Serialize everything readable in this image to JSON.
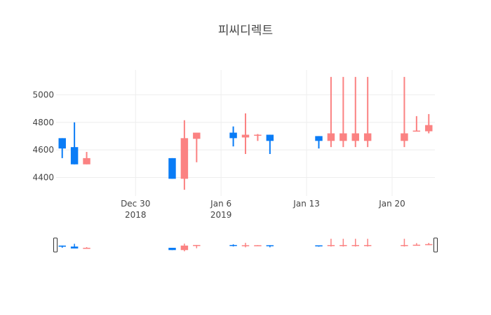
{
  "chart_data": {
    "type": "candlestick",
    "title": "피씨디렉트",
    "colors": {
      "increasing": "#fb8282",
      "decreasing": "#0a7cf6"
    },
    "y_ticks": [
      "4400",
      "4600",
      "4800",
      "5000"
    ],
    "y_tick_values": [
      4400,
      4600,
      4800,
      5000
    ],
    "ylim": [
      4265,
      5180
    ],
    "x_ticks": [
      {
        "value": "2018-12-30",
        "line1": "Dec 30",
        "line2": "2018"
      },
      {
        "value": "2019-01-06",
        "line1": "Jan 6",
        "line2": "2019"
      },
      {
        "value": "2019-01-13",
        "line1": "Jan 13",
        "line2": ""
      },
      {
        "value": "2019-01-20",
        "line1": "Jan 20",
        "line2": ""
      }
    ],
    "xlim": [
      "2018-12-23 12:00",
      "2019-01-23 12:00"
    ],
    "rangeslider": true,
    "grid": true,
    "legend": "none",
    "candles": [
      {
        "date": "2018-12-24",
        "open": 4685,
        "high": 4685,
        "low": 4540,
        "close": 4610
      },
      {
        "date": "2018-12-25",
        "open": 4620,
        "high": 4800,
        "low": 4495,
        "close": 4495
      },
      {
        "date": "2018-12-26",
        "open": 4495,
        "high": 4585,
        "low": 4495,
        "close": 4540
      },
      {
        "date": "2019-01-02",
        "open": 4540,
        "high": 4540,
        "low": 4390,
        "close": 4390
      },
      {
        "date": "2019-01-03",
        "open": 4390,
        "high": 4815,
        "low": 4310,
        "close": 4685
      },
      {
        "date": "2019-01-04",
        "open": 4680,
        "high": 4725,
        "low": 4510,
        "close": 4725
      },
      {
        "date": "2019-01-07",
        "open": 4725,
        "high": 4770,
        "low": 4625,
        "close": 4685
      },
      {
        "date": "2019-01-08",
        "open": 4690,
        "high": 4865,
        "low": 4570,
        "close": 4710
      },
      {
        "date": "2019-01-09",
        "open": 4705,
        "high": 4715,
        "low": 4665,
        "close": 4710
      },
      {
        "date": "2019-01-10",
        "open": 4710,
        "high": 4710,
        "low": 4570,
        "close": 4665
      },
      {
        "date": "2019-01-14",
        "open": 4700,
        "high": 4700,
        "low": 4610,
        "close": 4665
      },
      {
        "date": "2019-01-15",
        "open": 4665,
        "high": 5130,
        "low": 4620,
        "close": 4720
      },
      {
        "date": "2019-01-16",
        "open": 4665,
        "high": 5130,
        "low": 4620,
        "close": 4720
      },
      {
        "date": "2019-01-17",
        "open": 4665,
        "high": 5130,
        "low": 4620,
        "close": 4720
      },
      {
        "date": "2019-01-18",
        "open": 4665,
        "high": 5130,
        "low": 4620,
        "close": 4720
      },
      {
        "date": "2019-01-21",
        "open": 4665,
        "high": 5130,
        "low": 4620,
        "close": 4720
      },
      {
        "date": "2019-01-22",
        "open": 4735,
        "high": 4845,
        "low": 4735,
        "close": 4740
      },
      {
        "date": "2019-01-23",
        "open": 4735,
        "high": 4860,
        "low": 4720,
        "close": 4780
      }
    ]
  }
}
